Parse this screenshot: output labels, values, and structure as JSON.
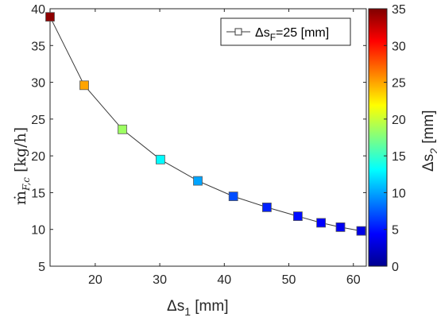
{
  "chart_data": {
    "type": "scatter",
    "xlabel": {
      "main": "Δs",
      "sub": "1",
      "rest": " [mm]"
    },
    "ylabel": {
      "main": "ṁ",
      "sub": "F,c",
      "rest": "  [kg/h]"
    },
    "xlim": [
      13,
      62
    ],
    "ylim": [
      5,
      40
    ],
    "xticks": [
      "20",
      "30",
      "40",
      "50",
      "60"
    ],
    "yticks": [
      "5",
      "10",
      "15",
      "20",
      "25",
      "30",
      "35",
      "40"
    ],
    "grid": false,
    "legend": {
      "position": "top-right",
      "prefix": "Δs",
      "sub": "F",
      "rest": "=25 [mm]"
    },
    "series": [
      {
        "name": "ΔsF=25 [mm]",
        "line_color": "#3a3a3a",
        "points": [
          {
            "x": 13.0,
            "y": 38.9,
            "c": 34.5
          },
          {
            "x": 18.3,
            "y": 29.6,
            "c": 25.0
          },
          {
            "x": 24.2,
            "y": 23.6,
            "c": 18.5
          },
          {
            "x": 30.1,
            "y": 19.5,
            "c": 13.0
          },
          {
            "x": 35.9,
            "y": 16.6,
            "c": 10.0
          },
          {
            "x": 41.4,
            "y": 14.5,
            "c": 7.0
          },
          {
            "x": 46.6,
            "y": 13.0,
            "c": 5.5
          },
          {
            "x": 51.4,
            "y": 11.8,
            "c": 4.8
          },
          {
            "x": 55.0,
            "y": 10.9,
            "c": 4.3
          },
          {
            "x": 58.0,
            "y": 10.3,
            "c": 3.9
          },
          {
            "x": 61.2,
            "y": 9.8,
            "c": 3.5
          }
        ]
      }
    ],
    "colorbar": {
      "label": {
        "main": "Δs",
        "sub": "2",
        "rest": " [mm]"
      },
      "lim": [
        0,
        35
      ],
      "ticks": [
        "0",
        "5",
        "10",
        "15",
        "20",
        "25",
        "30",
        "35"
      ],
      "colormap": "jet"
    }
  }
}
